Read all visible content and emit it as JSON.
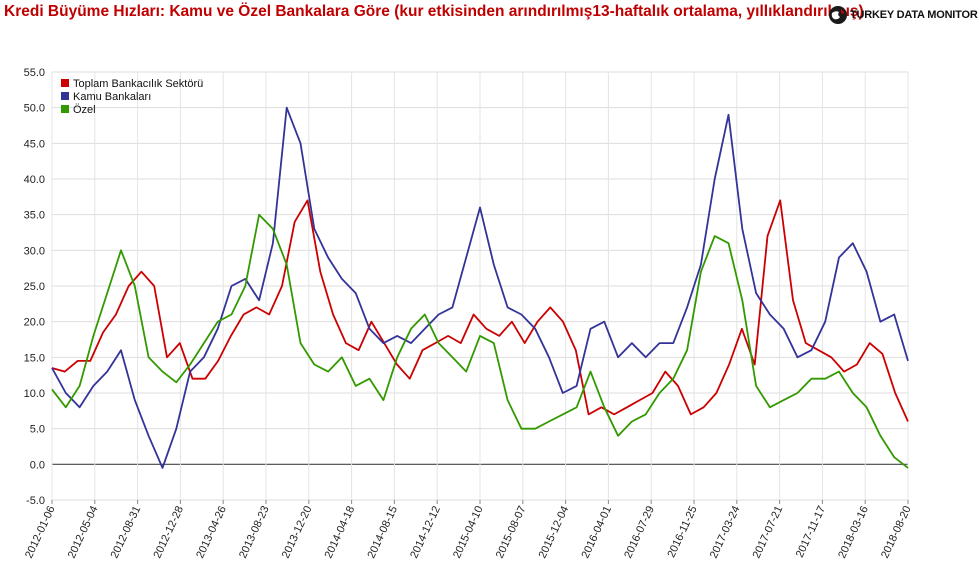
{
  "header": {
    "title": "Kredi Büyüme Hızları: Kamu ve Özel Bankalara Göre (kur etkisinden arındırılmış13-haftalık ortalama, yıllıklandırılmış)",
    "brand": "TURKEY DATA MONITOR"
  },
  "chart_data": {
    "type": "line",
    "title": "Kredi Büyüme Hızları: Kamu ve Özel Bankalara Göre (kur etkisinden arındırılmış13-haftalık ortalama, yıllıklandırılmış)",
    "x_tick_labels": [
      "2012-01-06",
      "2012-05-04",
      "2012-08-31",
      "2012-12-28",
      "2013-04-26",
      "2013-08-23",
      "2013-12-20",
      "2014-04-18",
      "2014-08-15",
      "2014-12-12",
      "2015-04-10",
      "2015-08-07",
      "2015-12-04",
      "2016-04-01",
      "2016-07-29",
      "2016-11-25",
      "2017-03-24",
      "2017-07-21",
      "2017-11-17",
      "2018-03-16",
      "2018-08-20"
    ],
    "ylim": [
      -5,
      55
    ],
    "y_ticks": [
      "-5.0",
      "0.0",
      "5.0",
      "10.0",
      "15.0",
      "20.0",
      "25.0",
      "30.0",
      "35.0",
      "40.0",
      "45.0",
      "50.0",
      "55.0"
    ],
    "grid": true,
    "legend_position": "top-left",
    "series": [
      {
        "name": "Toplam Bankacılık Sektörü",
        "color": "#cc0000",
        "values": [
          13.5,
          13.0,
          14.5,
          14.5,
          18.5,
          21.0,
          25.0,
          27.0,
          25.0,
          15.0,
          17.0,
          12.0,
          12.0,
          14.5,
          18.0,
          21.0,
          22.0,
          21.0,
          25.0,
          34.0,
          37.0,
          27.0,
          21.0,
          17.0,
          16.0,
          20.0,
          17.0,
          14.0,
          12.0,
          16.0,
          17.0,
          18.0,
          17.0,
          21.0,
          19.0,
          18.0,
          20.0,
          17.0,
          20.0,
          22.0,
          20.0,
          16.0,
          7.0,
          8.0,
          7.0,
          8.0,
          9.0,
          10.0,
          13.0,
          11.0,
          7.0,
          8.0,
          10.0,
          14.0,
          19.0,
          14.0,
          32.0,
          37.0,
          23.0,
          17.0,
          16.0,
          15.0,
          13.0,
          14.0,
          17.0,
          15.5,
          10.0,
          6.0
        ]
      },
      {
        "name": "Kamu Bankaları",
        "color": "#333399",
        "values": [
          13.5,
          10.0,
          8.0,
          11.0,
          13.0,
          16.0,
          9.0,
          4.0,
          -0.5,
          5.0,
          13.0,
          15.0,
          19.0,
          25.0,
          26.0,
          23.0,
          31.0,
          50.0,
          45.0,
          33.0,
          29.0,
          26.0,
          24.0,
          19.0,
          17.0,
          18.0,
          17.0,
          19.0,
          21.0,
          22.0,
          29.0,
          36.0,
          28.0,
          22.0,
          21.0,
          19.0,
          15.0,
          10.0,
          11.0,
          19.0,
          20.0,
          15.0,
          17.0,
          15.0,
          17.0,
          17.0,
          22.0,
          28.0,
          40.0,
          49.0,
          33.0,
          24.0,
          21.0,
          19.0,
          15.0,
          16.0,
          20.0,
          29.0,
          31.0,
          27.0,
          20.0,
          21.0,
          14.5
        ]
      },
      {
        "name": "Özel",
        "color": "#339900",
        "values": [
          10.5,
          8.0,
          11.0,
          18.0,
          24.0,
          30.0,
          25.0,
          15.0,
          13.0,
          11.5,
          14.0,
          17.0,
          20.0,
          21.0,
          25.0,
          35.0,
          33.0,
          28.0,
          17.0,
          14.0,
          13.0,
          15.0,
          11.0,
          12.0,
          9.0,
          15.0,
          19.0,
          21.0,
          17.0,
          15.0,
          13.0,
          18.0,
          17.0,
          9.0,
          5.0,
          5.0,
          6.0,
          7.0,
          8.0,
          13.0,
          8.0,
          4.0,
          6.0,
          7.0,
          10.0,
          12.0,
          16.0,
          27.0,
          32.0,
          31.0,
          23.0,
          11.0,
          8.0,
          9.0,
          10.0,
          12.0,
          12.0,
          13.0,
          10.0,
          8.0,
          4.0,
          1.0,
          -0.5
        ]
      }
    ]
  }
}
